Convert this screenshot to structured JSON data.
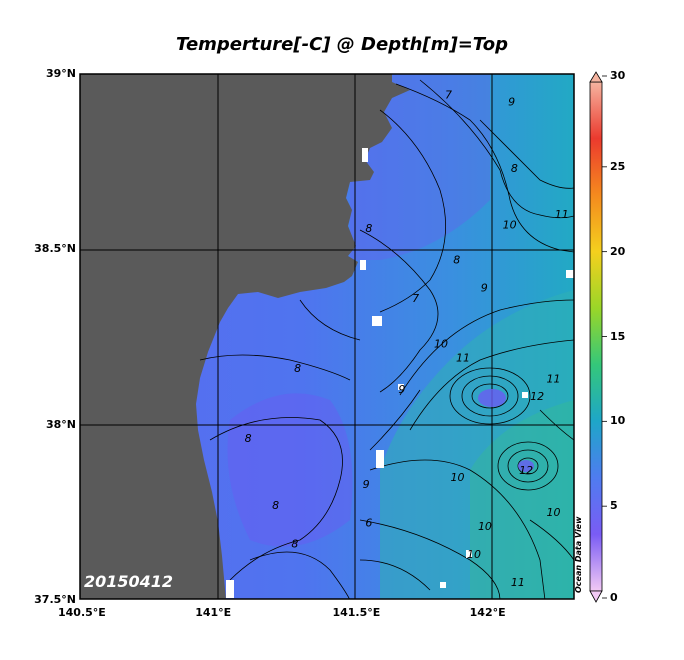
{
  "title": "Temperture[-C] @ Depth[m]=Top",
  "date_label": "20150412",
  "watermark": "Ocean Data View",
  "map": {
    "lat_range": [
      37.5,
      39.0
    ],
    "lon_range": [
      140.5,
      142.3
    ],
    "grid": true,
    "lon_ticks": [
      {
        "value": 140.5,
        "label": "140.5°E"
      },
      {
        "value": 141.0,
        "label": "141°E"
      },
      {
        "value": 141.5,
        "label": "141.5°E"
      },
      {
        "value": 142.0,
        "label": "142°E"
      }
    ],
    "lat_ticks": [
      {
        "value": 39.0,
        "label": "39°N"
      },
      {
        "value": 38.5,
        "label": "38.5°N"
      },
      {
        "value": 38.0,
        "label": "38°N"
      },
      {
        "value": 37.5,
        "label": "37.5°N"
      }
    ],
    "land_color": "#5a5a5a",
    "contour_labels": [
      {
        "text": "7",
        "lon": 141.83,
        "lat": 38.93
      },
      {
        "text": "9",
        "lon": 142.06,
        "lat": 38.91
      },
      {
        "text": "8",
        "lon": 142.07,
        "lat": 38.72
      },
      {
        "text": "11",
        "lon": 142.23,
        "lat": 38.59
      },
      {
        "text": "10",
        "lon": 142.04,
        "lat": 38.56
      },
      {
        "text": "8",
        "lon": 141.54,
        "lat": 38.55
      },
      {
        "text": "7",
        "lon": 141.71,
        "lat": 38.35
      },
      {
        "text": "8",
        "lon": 141.86,
        "lat": 38.46
      },
      {
        "text": "9",
        "lon": 141.96,
        "lat": 38.38
      },
      {
        "text": "10",
        "lon": 141.79,
        "lat": 38.22
      },
      {
        "text": "11",
        "lon": 141.87,
        "lat": 38.18
      },
      {
        "text": "11",
        "lon": 142.2,
        "lat": 38.12
      },
      {
        "text": "12",
        "lon": 142.14,
        "lat": 38.07
      },
      {
        "text": "8",
        "lon": 141.28,
        "lat": 38.15
      },
      {
        "text": "9",
        "lon": 141.66,
        "lat": 38.09
      },
      {
        "text": "8",
        "lon": 141.1,
        "lat": 37.95
      },
      {
        "text": "9",
        "lon": 141.53,
        "lat": 37.82
      },
      {
        "text": "10",
        "lon": 141.85,
        "lat": 37.84
      },
      {
        "text": "12",
        "lon": 142.1,
        "lat": 37.86
      },
      {
        "text": "8",
        "lon": 141.2,
        "lat": 37.76
      },
      {
        "text": "6",
        "lon": 141.54,
        "lat": 37.71
      },
      {
        "text": "10",
        "lon": 141.95,
        "lat": 37.7
      },
      {
        "text": "10",
        "lon": 142.2,
        "lat": 37.74
      },
      {
        "text": "8",
        "lon": 141.27,
        "lat": 37.65
      },
      {
        "text": "10",
        "lon": 141.91,
        "lat": 37.62
      },
      {
        "text": "11",
        "lon": 142.07,
        "lat": 37.54
      }
    ]
  },
  "colorbar": {
    "range": [
      0,
      30
    ],
    "ticks": [
      {
        "value": 30,
        "label": "30"
      },
      {
        "value": 25,
        "label": "25"
      },
      {
        "value": 20,
        "label": "20"
      },
      {
        "value": 15,
        "label": "15"
      },
      {
        "value": 10,
        "label": "10"
      },
      {
        "value": 5,
        "label": "5"
      },
      {
        "value": 0,
        "label": "0"
      }
    ],
    "colors": [
      "#f2c9f5",
      "#7a5cf5",
      "#4f7cf0",
      "#1ea6c8",
      "#34c77a",
      "#9ad628",
      "#f5d01e",
      "#f58a1e",
      "#eb3a2e",
      "#f5b4a0"
    ]
  }
}
